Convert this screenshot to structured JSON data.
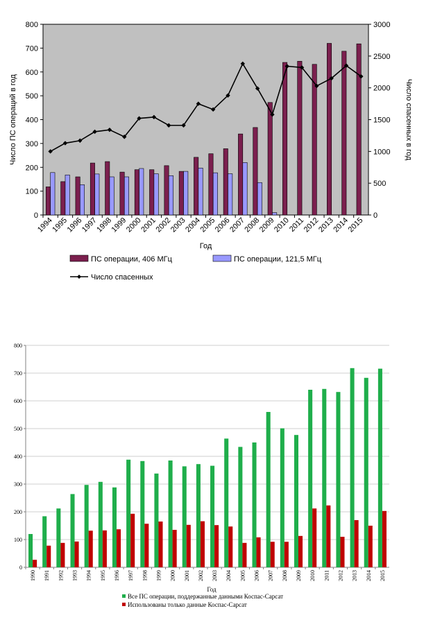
{
  "chart_data": [
    {
      "type": "bar",
      "categories": [
        "1994",
        "1995",
        "1996",
        "1997",
        "1998",
        "1999",
        "2000",
        "2001",
        "2002",
        "2003",
        "2004",
        "2005",
        "2006",
        "2007",
        "2008",
        "2009",
        "2010",
        "2011",
        "2012",
        "2013",
        "2014",
        "2015"
      ],
      "series": [
        {
          "name": "ПС операции, 406 МГц",
          "type": "bar",
          "axis": "left",
          "color": "#7b1f4e",
          "values": [
            118,
            140,
            160,
            218,
            224,
            180,
            190,
            190,
            207,
            183,
            242,
            257,
            278,
            340,
            367,
            472,
            640,
            645,
            632,
            720,
            687,
            718
          ]
        },
        {
          "name": "ПС операции, 121,5 МГц",
          "type": "bar",
          "axis": "left",
          "color": "#9999ff",
          "values": [
            178,
            168,
            127,
            172,
            160,
            160,
            195,
            173,
            165,
            183,
            197,
            177,
            173,
            220,
            136,
            10,
            0,
            0,
            0,
            0,
            0,
            0
          ]
        },
        {
          "name": "Число спасенных",
          "type": "line",
          "axis": "right",
          "color": "#000000",
          "values": [
            1000,
            1130,
            1170,
            1310,
            1340,
            1230,
            1520,
            1540,
            1410,
            1410,
            1750,
            1660,
            1880,
            2380,
            1990,
            1580,
            2340,
            2320,
            2030,
            2150,
            2350,
            2180
          ]
        }
      ],
      "title": "",
      "xlabel": "Год",
      "ylabel": "Число ПС операций в год",
      "y2label": "Число спасенных в год",
      "ylim": [
        0,
        800
      ],
      "y2lim": [
        0,
        3000
      ],
      "yticks": [
        0,
        100,
        200,
        300,
        400,
        500,
        600,
        700,
        800
      ],
      "y2ticks": [
        0,
        500,
        1000,
        1500,
        2000,
        2500,
        3000
      ],
      "plot_background": "#c0c0c0",
      "grid": false,
      "legend_position": "bottom"
    },
    {
      "type": "bar",
      "categories": [
        "1990",
        "1991",
        "1992",
        "1993",
        "1994",
        "1995",
        "1996",
        "1997",
        "1998",
        "1999",
        "2000",
        "2001",
        "2002",
        "2003",
        "2004",
        "2005",
        "2006",
        "2007",
        "2008",
        "2009",
        "2010",
        "2011",
        "2012",
        "2013",
        "2014",
        "2015"
      ],
      "series": [
        {
          "name": "Все ПС операции,  поддержанные данными  Коспас-Сарсат",
          "color": "#1fae4b",
          "values": [
            120,
            184,
            212,
            264,
            297,
            308,
            288,
            388,
            383,
            338,
            385,
            364,
            372,
            366,
            464,
            434,
            450,
            560,
            501,
            477,
            640,
            643,
            632,
            718,
            683,
            716
          ]
        },
        {
          "name": "Использованы только данные Коспас-Сарсат",
          "color": "#c00000",
          "values": [
            27,
            78,
            88,
            93,
            132,
            133,
            137,
            193,
            157,
            165,
            135,
            153,
            166,
            152,
            147,
            88,
            108,
            92,
            92,
            113,
            212,
            223,
            110,
            170,
            150,
            203
          ]
        }
      ],
      "title": "",
      "xlabel": "Год",
      "ylabel": "",
      "ylim": [
        0,
        800
      ],
      "yticks": [
        0,
        100,
        200,
        300,
        400,
        500,
        600,
        700,
        800
      ],
      "grid": true,
      "legend_position": "bottom"
    }
  ]
}
